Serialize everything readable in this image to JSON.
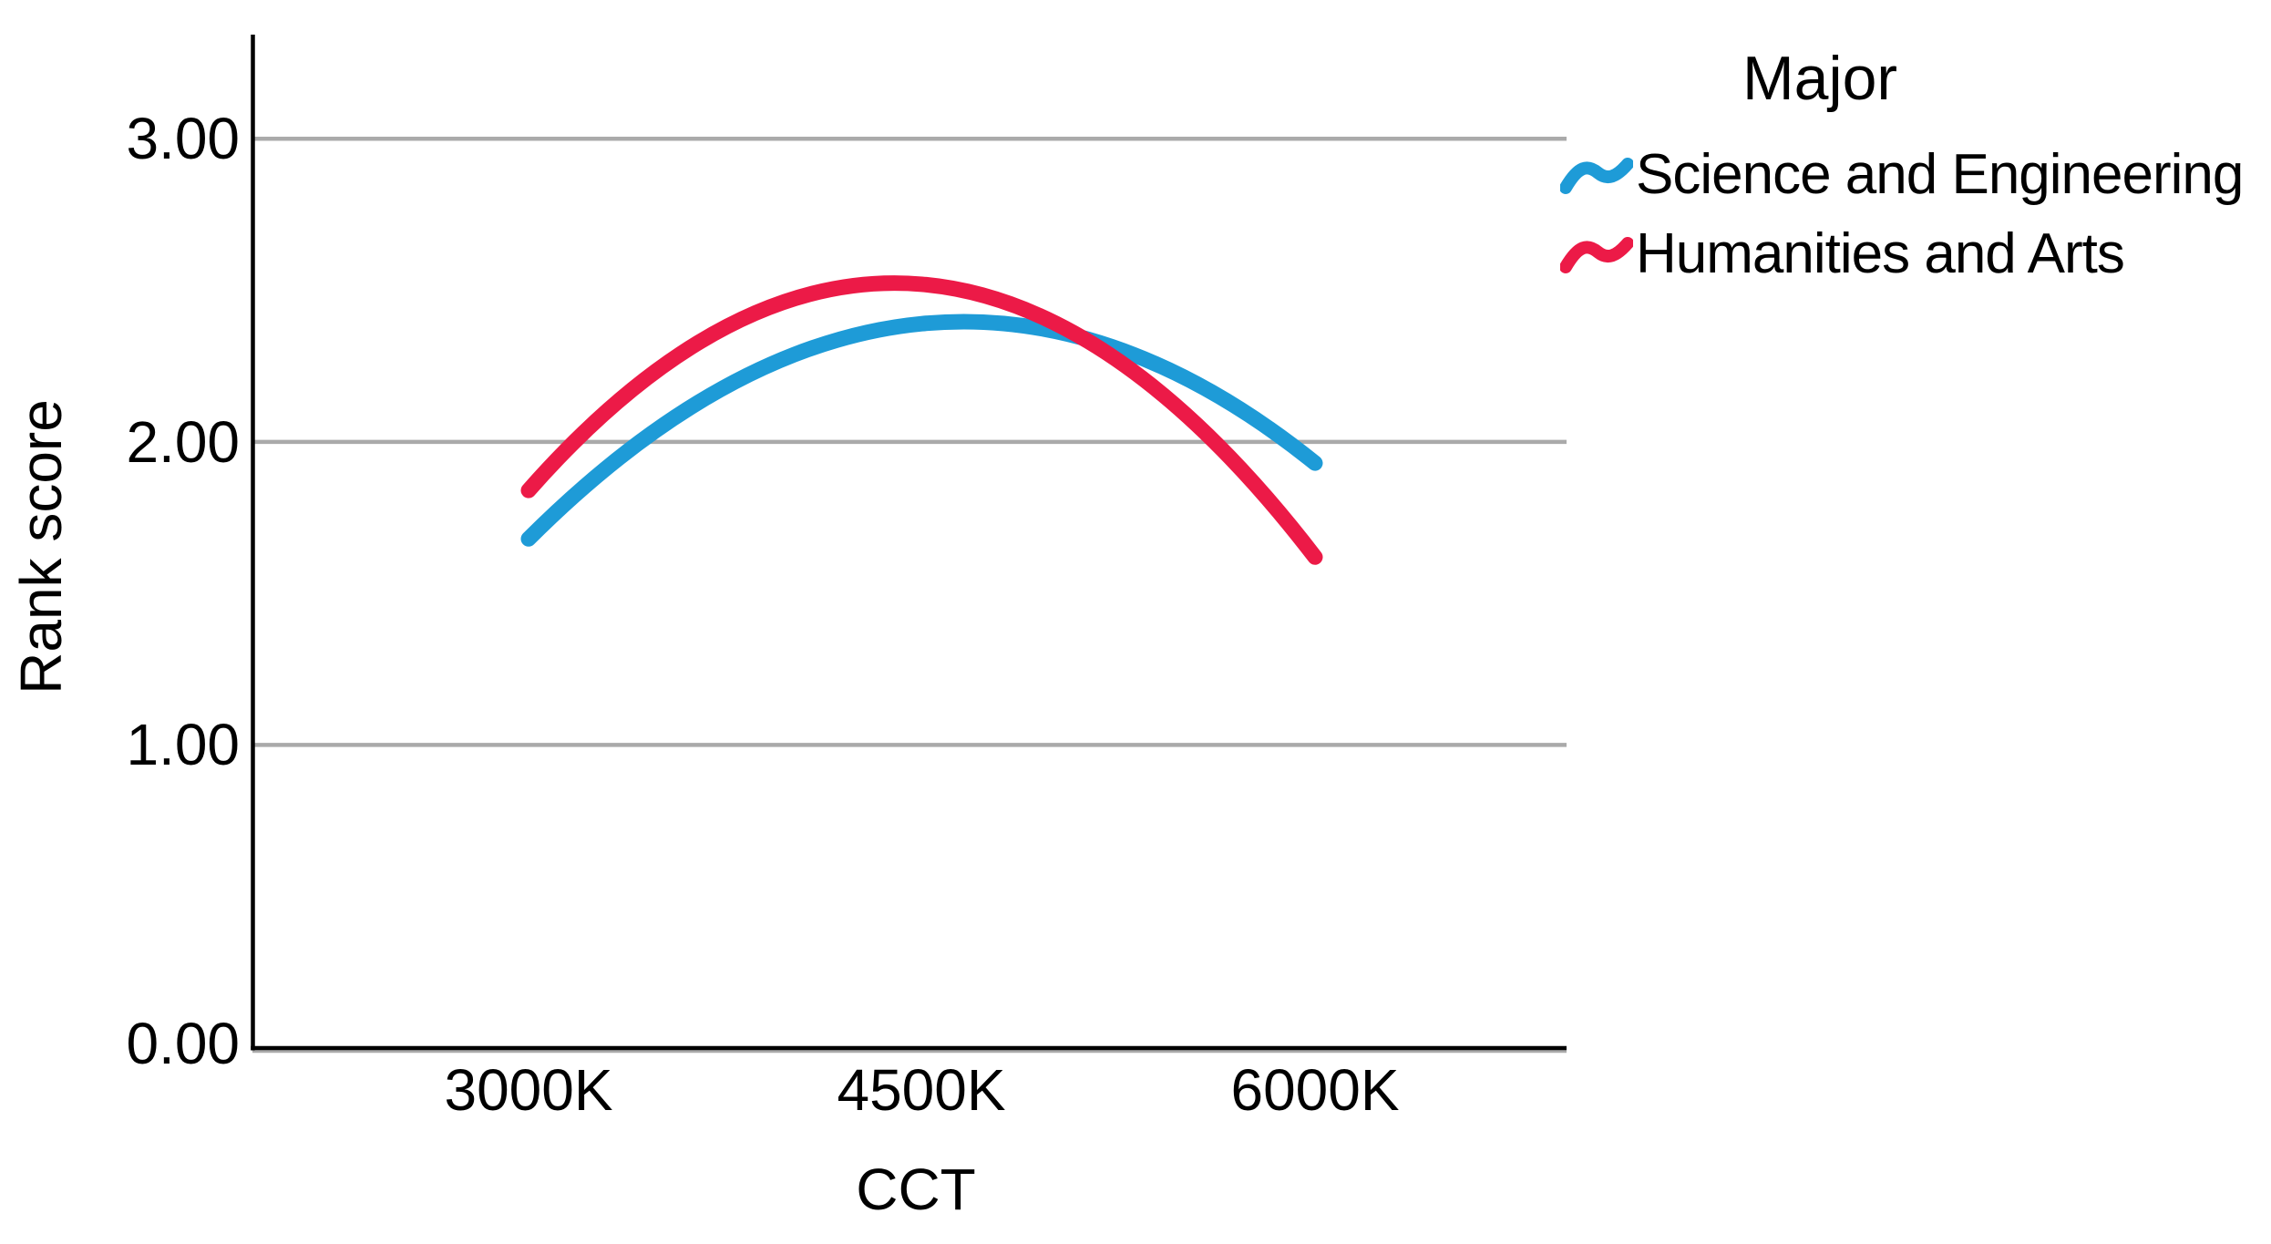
{
  "chart_data": {
    "type": "line",
    "curve_style": "quadratic-smooth",
    "xlabel": "CCT",
    "ylabel": "Rank score",
    "x_categories": [
      3000,
      4500,
      6000
    ],
    "x_tick_labels": [
      "3000K",
      "4500K",
      "6000K"
    ],
    "y_tick_labels": [
      "0.00",
      "1.00",
      "2.00",
      "3.00"
    ],
    "y_tick_values": [
      0,
      1,
      2,
      3
    ],
    "ylim": [
      0,
      3
    ],
    "grid": "horizontal-only",
    "gridline_color": "#AAAAAA",
    "axis_color": "#000000",
    "legend": {
      "title": "Major",
      "position": "top-right",
      "entries": [
        {
          "label": "Science and Engineering",
          "color": "#1E9BD7"
        },
        {
          "label": "Humanities and Arts",
          "color": "#EC1A47"
        }
      ]
    },
    "series": [
      {
        "name": "Science and Engineering",
        "color": "#1E9BD7",
        "values": [
          1.68,
          2.39,
          1.93
        ]
      },
      {
        "name": "Humanities and Arts",
        "color": "#EC1A47",
        "values": [
          1.84,
          2.52,
          1.62
        ]
      }
    ]
  }
}
